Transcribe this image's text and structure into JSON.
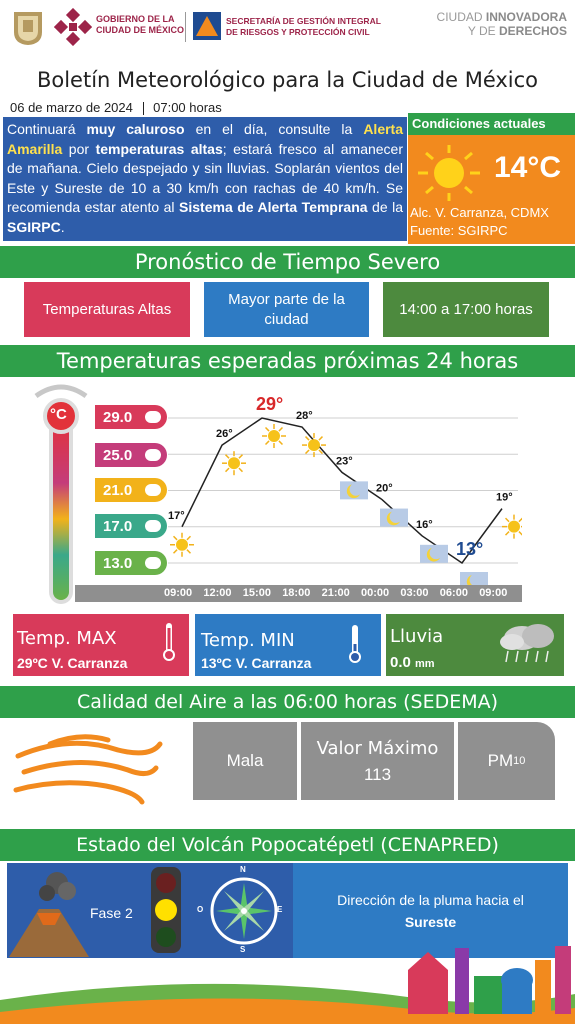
{
  "header": {
    "logo_gov_line1": "GOBIERNO DE LA",
    "logo_gov_line2": "CIUDAD DE MÉXICO",
    "secretaria_line1": "SECRETARÍA DE GESTIÓN INTEGRAL",
    "secretaria_line2": "DE RIESGOS Y PROTECCIÓN CIVIL",
    "slogan_line1_a": "CIUDAD ",
    "slogan_line1_b": "INNOVADORA",
    "slogan_line2_a": "Y DE ",
    "slogan_line2_b": "DERECHOS"
  },
  "title": "Boletín Meteorológico para la Ciudad de México",
  "date": "06 de marzo de 2024",
  "time": "07:00 horas",
  "summary": {
    "t1": "Continuará ",
    "b1": "muy caluroso",
    "t2": " en el día, consulte la ",
    "h1": "Alerta Amarilla",
    "t3": " por ",
    "b2": "temperaturas altas",
    "t4": "; estará fresco al amanecer de mañana. Cielo despejado y sin lluvias. Soplarán vientos del Este y Sureste de 10 a 30 km/h con rachas de 40 km/h. Se recomienda estar atento al ",
    "b3": "Sistema de Alerta Temprana",
    "t5": " de la ",
    "b4": "SGIRPC",
    "t6": "."
  },
  "current": {
    "title": "Condiciones actuales",
    "temp": "14°C",
    "location": "Alc. V. Carranza, CDMX",
    "source": "Fuente: SGIRPC"
  },
  "severe": {
    "title": "Pronóstico de Tiempo Severo",
    "tag1": "Temperaturas Altas",
    "tag2": "Mayor parte de la ciudad",
    "tag3": "14:00 a 17:00 horas"
  },
  "temps24": {
    "title": "Temperaturas esperadas próximas 24 horas",
    "scale": [
      "29.0",
      "25.0",
      "21.0",
      "17.0",
      "13.0"
    ],
    "times": [
      "09:00",
      "12:00",
      "15:00",
      "18:00",
      "21:00",
      "00:00",
      "03:00",
      "06:00",
      "09:00"
    ],
    "point_labels": [
      "17°",
      "26°",
      "29°",
      "28°",
      "23°",
      "20°",
      "16°",
      "13°",
      "19°"
    ],
    "values": [
      17,
      26,
      29,
      28,
      23,
      20,
      16,
      13,
      19
    ],
    "thermo_unit": "°C"
  },
  "summary_boxes": {
    "max_label": "Temp. MAX",
    "max_value": "29ºC V. Carranza",
    "min_label": "Temp. MIN",
    "min_value": "13ºC  V. Carranza",
    "rain_label": "Lluvia",
    "rain_value": "0.0",
    "rain_unit": "mm"
  },
  "air": {
    "title": "Calidad del Aire a las 06:00 horas (SEDEMA)",
    "quality": "Mala",
    "max_label": "Valor Máximo",
    "max_value": "113",
    "pollutant": "PM",
    "pollutant_sub": "10"
  },
  "volcano": {
    "title": "Estado del Volcán Popocatépetl (CENAPRED)",
    "phase": "Fase 2",
    "plume_text": "Dirección de la pluma hacia el",
    "plume_dir": "Sureste",
    "compass_n": "N",
    "compass_s": "S",
    "compass_e": "E",
    "compass_o": "O"
  },
  "colors": {
    "green": "#2fa04a",
    "blue": "#2e5daa",
    "red": "#d83a5a",
    "orange": "#f28a1e",
    "grey": "#909090"
  }
}
